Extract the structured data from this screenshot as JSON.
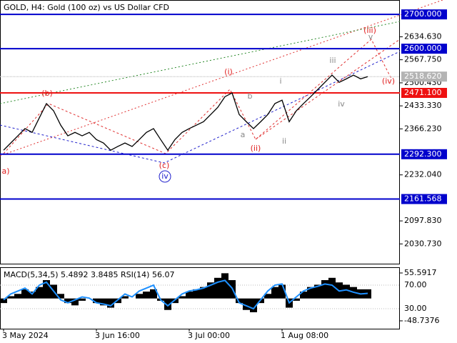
{
  "chart_data": [
    {
      "type": "line",
      "title": "GOLD, H4:  Gold (100 oz) vs US Dollar CFD",
      "categories": [
        "3 May 2024",
        null,
        null,
        null,
        null,
        null,
        null,
        null,
        null,
        null,
        null,
        null,
        null,
        "3 Jun 16:00",
        null,
        null,
        null,
        null,
        null,
        null,
        null,
        null,
        null,
        null,
        null,
        null,
        "3 Jul 00:00",
        null,
        null,
        null,
        null,
        null,
        null,
        null,
        null,
        null,
        null,
        null,
        null,
        "1 Aug 08:00",
        null,
        null,
        null,
        null,
        null,
        null,
        null,
        null,
        null,
        null,
        null,
        null
      ],
      "values": [
        2304,
        2325,
        2346,
        2367,
        2356,
        2398,
        2440,
        2419,
        2377,
        2346,
        2356,
        2346,
        2356,
        2335,
        2325,
        2304,
        2315,
        2325,
        2315,
        2335,
        2356,
        2367,
        2335,
        2304,
        2335,
        2356,
        2367,
        2377,
        2387,
        2408,
        2429,
        2460,
        2471,
        2408,
        2387,
        2367,
        2387,
        2408,
        2440,
        2450,
        2387,
        2419,
        2440,
        2460,
        2481,
        2502,
        2523,
        2502,
        2512,
        2523,
        2512,
        2518.62
      ],
      "color": "#000000",
      "ylim": [
        1971,
        2742
      ],
      "yticks": [
        {
          "value": 2634.63,
          "label": "2634.630"
        },
        {
          "value": 2567.75,
          "label": "2567.750"
        },
        {
          "value": 2500.43,
          "label": "2500.430"
        },
        {
          "value": 2433.33,
          "label": "2433.330"
        },
        {
          "value": 2366.23,
          "label": "2366.230"
        },
        {
          "value": 2232.04,
          "label": "2232.040"
        },
        {
          "value": 2097.83,
          "label": "2097.830"
        },
        {
          "value": 2030.73,
          "label": "2030.730"
        }
      ],
      "levels": [
        {
          "value": 2700,
          "label": "2700.000",
          "color": "#0000cc"
        },
        {
          "value": 2600,
          "label": "2600.000",
          "color": "#0000cc"
        },
        {
          "value": 2471.1,
          "label": "2471.100",
          "color": "#ee1111"
        },
        {
          "value": 2292.3,
          "label": "2292.300",
          "color": "#0000cc"
        },
        {
          "value": 2161.568,
          "label": "2161.568",
          "color": "#0000cc"
        }
      ],
      "current_price": {
        "value": 2518.62,
        "label": "2518.620",
        "color": "#b4b4b4"
      },
      "annotations": [
        {
          "text": "a)",
          "color": "#e02020"
        },
        {
          "text": "(b)",
          "color": "#e02020"
        },
        {
          "text": "(c)",
          "color": "#e02020"
        },
        {
          "text": "iv",
          "color": "#2020cc"
        },
        {
          "text": "(i)",
          "color": "#e02020"
        },
        {
          "text": "b",
          "color": "#888888"
        },
        {
          "text": "a",
          "color": "#888888"
        },
        {
          "text": "(ii)",
          "color": "#e02020"
        },
        {
          "text": "i",
          "color": "#888888"
        },
        {
          "text": "ii",
          "color": "#888888"
        },
        {
          "text": "iii",
          "color": "#888888"
        },
        {
          "text": "iv",
          "color": "#888888"
        },
        {
          "text": "v",
          "color": "#888888"
        },
        {
          "text": "(iii)",
          "color": "#e02020"
        },
        {
          "text": "(iv)",
          "color": "#e02020"
        }
      ]
    },
    {
      "type": "macd",
      "title": "MACD(5,34,5) 5.4892 3.8485 RSI(14) 56.07",
      "ylim": [
        -3.9,
        99.1
      ],
      "yticks": [
        {
          "value": 70,
          "label": "70.00"
        },
        {
          "value": 30,
          "label": "30.00"
        }
      ],
      "y2lim": [
        -65.9,
        66.5
      ],
      "y2ticks": [
        55.5917,
        -48.7376
      ],
      "series": [
        {
          "color": "#000000",
          "axis": "y2",
          "values": [
            -10,
            5,
            10,
            20,
            15,
            25,
            40,
            30,
            10,
            -10,
            -15,
            -5,
            0,
            -10,
            -15,
            -20,
            -10,
            5,
            0,
            10,
            15,
            20,
            -5,
            -25,
            -10,
            5,
            15,
            20,
            25,
            35,
            45,
            55,
            40,
            -10,
            -25,
            -30,
            -10,
            10,
            25,
            30,
            -20,
            -5,
            15,
            25,
            30,
            40,
            45,
            35,
            30,
            25,
            20,
            20
          ]
        },
        {
          "color": "#1e90ff",
          "values": [
            45,
            55,
            60,
            65,
            55,
            70,
            75,
            60,
            45,
            40,
            45,
            50,
            48,
            40,
            38,
            35,
            45,
            55,
            50,
            60,
            65,
            70,
            45,
            35,
            45,
            55,
            60,
            62,
            65,
            70,
            75,
            78,
            65,
            40,
            35,
            30,
            45,
            60,
            70,
            72,
            40,
            50,
            60,
            65,
            68,
            72,
            70,
            60,
            62,
            58,
            55,
            56.07
          ]
        }
      ]
    }
  ]
}
